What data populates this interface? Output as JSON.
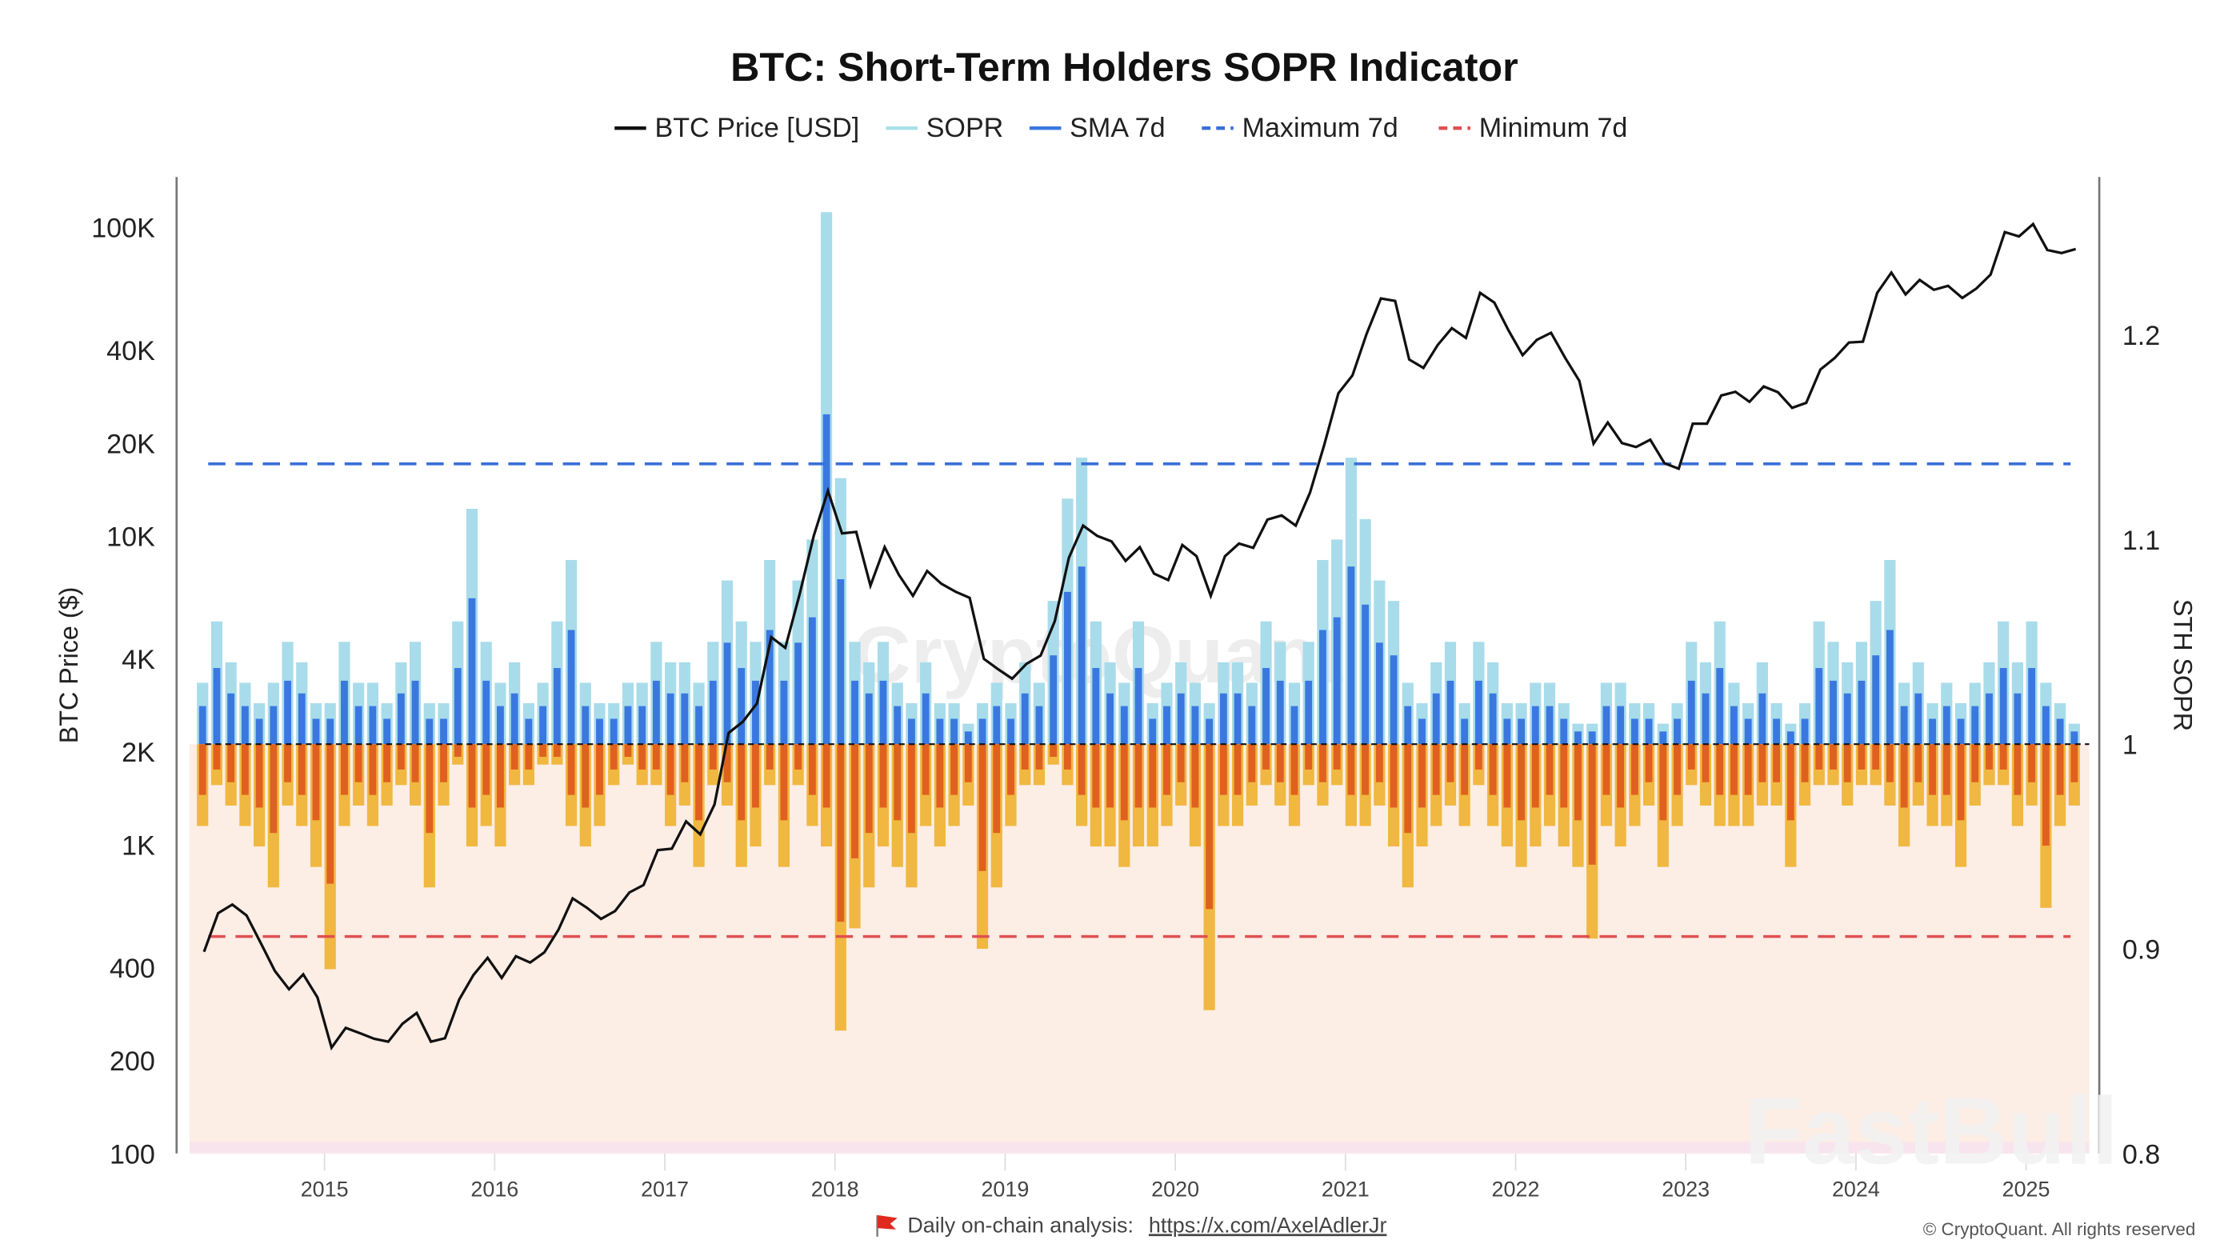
{
  "chart_data": {
    "type": "line",
    "title": "BTC: Short-Term Holders SOPR Indicator",
    "legend": {
      "placement": "top-center",
      "entries": [
        {
          "name": "BTC Price [USD]",
          "color": "#111111",
          "style": "solid"
        },
        {
          "name": "SOPR",
          "color": "#a8e0e8",
          "style": "solid"
        },
        {
          "name": "SMA 7d",
          "color": "#3a78e0",
          "style": "solid"
        },
        {
          "name": "Maximum 7d",
          "color": "#3a6fd8",
          "style": "dashed"
        },
        {
          "name": "Minimum 7d",
          "color": "#e05050",
          "style": "dashed"
        }
      ]
    },
    "ylabel_left": "BTC Price ($)",
    "ylabel_right": "STH SOPR",
    "y_left_scale": "log",
    "y_left_range": [
      100,
      130000
    ],
    "y_left_ticks": [
      100,
      200,
      400,
      1000,
      2000,
      4000,
      10000,
      20000,
      40000,
      100000
    ],
    "y_left_tick_labels": [
      "100",
      "200",
      "400",
      "1K",
      "2K",
      "4K",
      "10K",
      "20K",
      "40K",
      "100K"
    ],
    "y_right_range": [
      0.8,
      1.26
    ],
    "y_right_ticks": [
      0.8,
      0.9,
      1,
      1.1,
      1.2
    ],
    "y_right_tick_labels": [
      "0.8",
      "0.9",
      "1",
      "1.1",
      "1.2"
    ],
    "x_tick_labels": [
      "2015",
      "2016",
      "2017",
      "2018",
      "2019",
      "2020",
      "2021",
      "2022",
      "2023",
      "2024",
      "2025"
    ],
    "grid": false,
    "reference_lines": {
      "sopr_baseline": 1,
      "maximum_7d": 1.137,
      "minimum_7d": 0.906
    },
    "btc_price_monthly": {
      "2014": [
        450,
        600,
        640,
        590,
        480,
        390,
        340,
        380,
        320
      ],
      "2015": [
        220,
        255,
        245,
        235,
        230,
        263,
        285,
        230,
        236,
        315,
        378,
        430
      ],
      "2016": [
        370,
        435,
        415,
        448,
        530,
        670,
        625,
        575,
        610,
        700,
        740,
        960
      ],
      "2017": [
        970,
        1190,
        1080,
        1350,
        2300,
        2500,
        2870,
        4700,
        4340,
        6450,
        10000,
        14000
      ],
      "2018": [
        10200,
        10300,
        6900,
        9200,
        7500,
        6400,
        7700,
        7000,
        6600,
        6300,
        4000,
        3700
      ],
      "2019": [
        3450,
        3850,
        4100,
        5300,
        8500,
        10800,
        10000,
        9600,
        8300,
        9200,
        7550,
        7200
      ],
      "2020": [
        9350,
        8600,
        6400,
        8600,
        9450,
        9150,
        11300,
        11650,
        10800,
        13800,
        19700,
        29000
      ],
      "2021": [
        33100,
        45200,
        58800,
        57700,
        37300,
        35000,
        41500,
        47100,
        43800,
        61300,
        57000,
        46300
      ],
      "2022": [
        38500,
        43200,
        45500,
        37700,
        31800,
        19900,
        23300,
        20000,
        19400,
        20500,
        17200,
        16500
      ],
      "2023": [
        23100,
        23100,
        28500,
        29300,
        27200,
        30500,
        29200,
        26000,
        27000,
        34600,
        37700,
        42300
      ],
      "2024": [
        42600,
        61200,
        71300,
        60600,
        67500,
        62700,
        64600,
        59000,
        63300,
        70200,
        96400,
        93400
      ],
      "2025": [
        102400,
        84400,
        82500,
        85000
      ]
    },
    "sopr_monthly_max": {
      "2014": [
        1.03,
        1.06,
        1.04,
        1.03,
        1.02,
        1.03,
        1.05,
        1.04,
        1.02
      ],
      "2015": [
        1.02,
        1.05,
        1.03,
        1.03,
        1.02,
        1.04,
        1.05,
        1.02,
        1.02,
        1.06,
        1.115,
        1.05
      ],
      "2016": [
        1.03,
        1.04,
        1.02,
        1.03,
        1.06,
        1.09,
        1.03,
        1.02,
        1.02,
        1.03,
        1.03,
        1.05
      ],
      "2017": [
        1.04,
        1.04,
        1.03,
        1.05,
        1.08,
        1.06,
        1.05,
        1.09,
        1.05,
        1.08,
        1.1,
        1.26
      ],
      "2018": [
        1.13,
        1.05,
        1.04,
        1.05,
        1.03,
        1.02,
        1.04,
        1.02,
        1.02,
        1.01,
        1.02,
        1.03
      ],
      "2019": [
        1.02,
        1.04,
        1.03,
        1.07,
        1.12,
        1.14,
        1.06,
        1.04,
        1.03,
        1.06,
        1.02,
        1.03
      ],
      "2020": [
        1.04,
        1.03,
        1.02,
        1.04,
        1.04,
        1.03,
        1.06,
        1.05,
        1.03,
        1.05,
        1.09,
        1.1
      ],
      "2021": [
        1.14,
        1.11,
        1.08,
        1.07,
        1.03,
        1.02,
        1.04,
        1.05,
        1.02,
        1.05,
        1.04,
        1.02
      ],
      "2022": [
        1.02,
        1.03,
        1.03,
        1.02,
        1.01,
        1.01,
        1.03,
        1.03,
        1.02,
        1.02,
        1.01,
        1.02
      ],
      "2023": [
        1.05,
        1.04,
        1.06,
        1.03,
        1.02,
        1.04,
        1.02,
        1.01,
        1.02,
        1.06,
        1.05,
        1.04
      ],
      "2024": [
        1.05,
        1.07,
        1.09,
        1.03,
        1.04,
        1.02,
        1.03,
        1.02,
        1.03,
        1.04,
        1.06,
        1.04
      ],
      "2025": [
        1.06,
        1.03,
        1.02,
        1.01
      ]
    },
    "sopr_monthly_min": {
      "2014": [
        0.96,
        0.98,
        0.97,
        0.96,
        0.95,
        0.93,
        0.97,
        0.96,
        0.94
      ],
      "2015": [
        0.89,
        0.96,
        0.97,
        0.96,
        0.97,
        0.98,
        0.97,
        0.93,
        0.97,
        0.99,
        0.95,
        0.96
      ],
      "2016": [
        0.95,
        0.98,
        0.98,
        0.99,
        0.99,
        0.96,
        0.95,
        0.96,
        0.98,
        0.99,
        0.98,
        0.98
      ],
      "2017": [
        0.96,
        0.97,
        0.94,
        0.98,
        0.97,
        0.94,
        0.95,
        0.98,
        0.94,
        0.98,
        0.96,
        0.95
      ],
      "2018": [
        0.86,
        0.91,
        0.93,
        0.95,
        0.94,
        0.93,
        0.96,
        0.95,
        0.96,
        0.97,
        0.9,
        0.93
      ],
      "2019": [
        0.96,
        0.98,
        0.98,
        0.99,
        0.98,
        0.96,
        0.95,
        0.95,
        0.94,
        0.95,
        0.95,
        0.96
      ],
      "2020": [
        0.97,
        0.95,
        0.87,
        0.96,
        0.96,
        0.97,
        0.98,
        0.97,
        0.96,
        0.98,
        0.97,
        0.98
      ],
      "2021": [
        0.96,
        0.96,
        0.97,
        0.95,
        0.93,
        0.95,
        0.96,
        0.97,
        0.96,
        0.98,
        0.96,
        0.95
      ],
      "2022": [
        0.94,
        0.95,
        0.96,
        0.95,
        0.94,
        0.905,
        0.96,
        0.95,
        0.96,
        0.97,
        0.94,
        0.96
      ],
      "2023": [
        0.98,
        0.97,
        0.96,
        0.96,
        0.96,
        0.97,
        0.97,
        0.94,
        0.97,
        0.98,
        0.98,
        0.97
      ],
      "2024": [
        0.98,
        0.98,
        0.97,
        0.95,
        0.97,
        0.96,
        0.96,
        0.94,
        0.97,
        0.98,
        0.98,
        0.96
      ],
      "2025": [
        0.97,
        0.92,
        0.96,
        0.97
      ]
    }
  },
  "colors": {
    "price": "#111111",
    "sopr_up": "#a8dcea",
    "sma_up": "#3a78e0",
    "sopr_down": "#f0b840",
    "sma_down": "#e06020",
    "loss_zone": "#fcede5",
    "max_line": "#3a6fd8",
    "min_line": "#e05050"
  },
  "footer": {
    "flag_icon": "red-flag-icon",
    "text": "Daily on-chain analysis:",
    "link": "https://x.com/AxelAdlerJr",
    "copyright": "© CryptoQuant. All rights reserved"
  },
  "watermarks": {
    "center": "CryptoQuant",
    "corner": "FastBull"
  }
}
